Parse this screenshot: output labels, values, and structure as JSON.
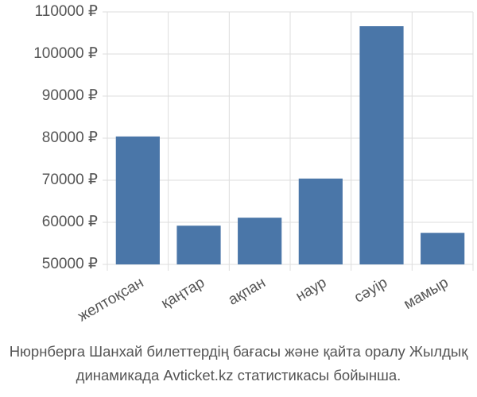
{
  "chart_data": {
    "type": "bar",
    "title": "Нюрнберга Шанхай билеттердің бағасы және қайта оралу Жылдық динамикада Avticket.kz статистикасы бойынша.",
    "categories": [
      "желтоқсан",
      "қаңтар",
      "ақпан",
      "наур",
      "сәуір",
      "мамыр"
    ],
    "values": [
      80400,
      59200,
      61100,
      70400,
      106600,
      57500
    ],
    "color": "#4a76a8",
    "ylim": [
      50000,
      110000
    ],
    "yticks": [
      {
        "value": 50000,
        "label": "50000 ₽"
      },
      {
        "value": 60000,
        "label": "60000 ₽"
      },
      {
        "value": 70000,
        "label": "70000 ₽"
      },
      {
        "value": 80000,
        "label": "80000 ₽"
      },
      {
        "value": 90000,
        "label": "90000 ₽"
      },
      {
        "value": 100000,
        "label": "100000 ₽"
      },
      {
        "value": 110000,
        "label": "110000 ₽"
      }
    ],
    "grid": true
  }
}
